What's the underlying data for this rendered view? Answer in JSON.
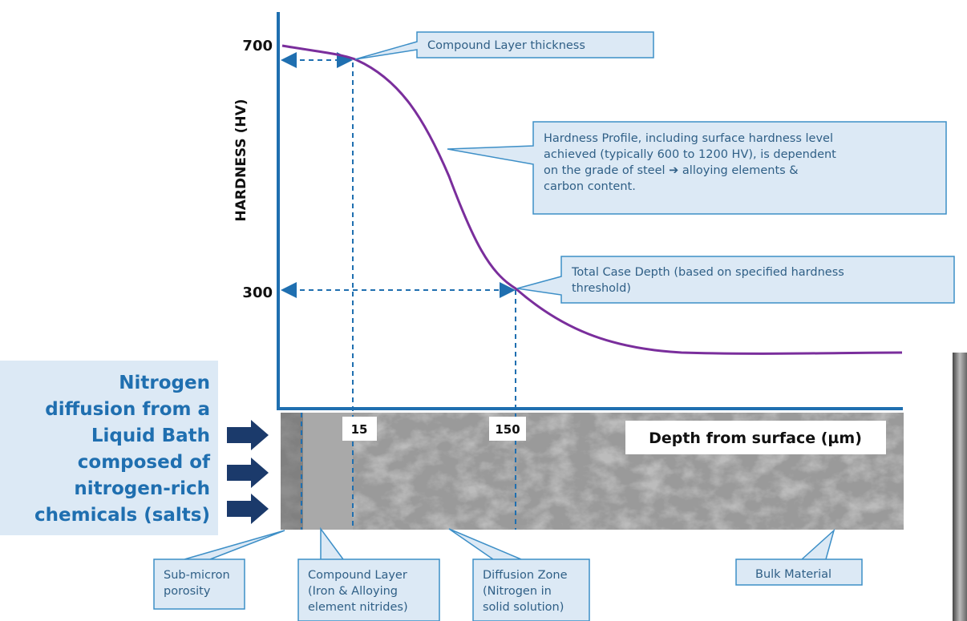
{
  "axis": {
    "y_title": "HARDNESS (HV)",
    "y_ticks": [
      "700",
      "300"
    ],
    "x_ticks": [
      "15",
      "150"
    ],
    "x_title": "Depth from surface (µm)"
  },
  "left_text": [
    "Nitrogen",
    "diffusion from a",
    "Liquid Bath",
    "composed of",
    "nitrogen-rich",
    "chemicals (salts)"
  ],
  "callouts": {
    "compound_thickness": [
      "Compound Layer thickness"
    ],
    "hardness_profile": [
      "Hardness Profile, including surface hardness level",
      "achieved (typically 600 to 1200 HV), is dependent",
      "on the grade of steel ➔ alloying elements &",
      "carbon content."
    ],
    "case_depth": [
      "Total Case Depth (based on specified hardness",
      "threshold)"
    ],
    "porosity": [
      "Sub-micron",
      "porosity"
    ],
    "compound_layer": [
      "Compound Layer",
      "(Iron & Alloying",
      "element nitrides)"
    ],
    "diffusion_zone": [
      "Diffusion Zone",
      "(Nitrogen in",
      "solid solution)"
    ],
    "bulk": [
      "Bulk Material"
    ]
  }
}
